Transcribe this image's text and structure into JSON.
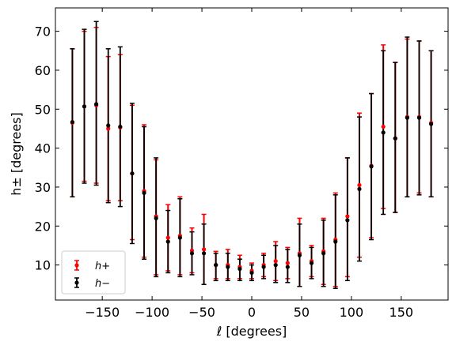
{
  "chart_data": {
    "type": "scatter",
    "xlabel": "ℓ [degrees]",
    "ylabel": "h± [degrees]",
    "xlim": [
      -197,
      197
    ],
    "ylim": [
      1,
      76
    ],
    "xticks": [
      -150,
      -100,
      -50,
      0,
      50,
      100,
      150
    ],
    "yticks": [
      10,
      20,
      30,
      40,
      50,
      60,
      70
    ],
    "xtick_labels": [
      "−150",
      "−100",
      "−50",
      "0",
      "50",
      "100",
      "150"
    ],
    "ytick_labels": [
      "10",
      "20",
      "30",
      "40",
      "50",
      "60",
      "70"
    ],
    "legend_position": "lower-left",
    "series": [
      {
        "name": "h+",
        "color": "#ff0000",
        "points": [
          {
            "x": -180,
            "y": 46.5,
            "lo": 27.5,
            "hi": 65.5
          },
          {
            "x": -168,
            "y": 50.7,
            "lo": 31.5,
            "hi": 70.0
          },
          {
            "x": -156,
            "y": 51.0,
            "lo": 31.0,
            "hi": 71.0
          },
          {
            "x": -144,
            "y": 45.0,
            "lo": 26.5,
            "hi": 63.5
          },
          {
            "x": -132,
            "y": 45.3,
            "lo": 26.5,
            "hi": 64.0
          },
          {
            "x": -120,
            "y": 33.5,
            "lo": 16.5,
            "hi": 51.0
          },
          {
            "x": -108,
            "y": 29.0,
            "lo": 12.0,
            "hi": 46.0
          },
          {
            "x": -96,
            "y": 22.5,
            "lo": 7.5,
            "hi": 37.0
          },
          {
            "x": -84,
            "y": 17.0,
            "lo": 8.5,
            "hi": 25.5
          },
          {
            "x": -72,
            "y": 17.5,
            "lo": 7.5,
            "hi": 27.5
          },
          {
            "x": -60,
            "y": 13.7,
            "lo": 8.0,
            "hi": 19.5
          },
          {
            "x": -48,
            "y": 14.0,
            "lo": 5.0,
            "hi": 23.0
          },
          {
            "x": -36,
            "y": 10.0,
            "lo": 6.5,
            "hi": 13.5
          },
          {
            "x": -24,
            "y": 10.0,
            "lo": 6.5,
            "hi": 14.0
          },
          {
            "x": -12,
            "y": 9.5,
            "lo": 6.5,
            "hi": 12.5
          },
          {
            "x": 0,
            "y": 8.5,
            "lo": 6.5,
            "hi": 10.5
          },
          {
            "x": 12,
            "y": 10.0,
            "lo": 7.0,
            "hi": 13.0
          },
          {
            "x": 24,
            "y": 11.0,
            "lo": 6.0,
            "hi": 16.0
          },
          {
            "x": 36,
            "y": 10.5,
            "lo": 6.5,
            "hi": 14.5
          },
          {
            "x": 48,
            "y": 13.0,
            "lo": 4.5,
            "hi": 22.0
          },
          {
            "x": 60,
            "y": 11.0,
            "lo": 7.0,
            "hi": 15.0
          },
          {
            "x": 72,
            "y": 13.5,
            "lo": 5.0,
            "hi": 22.0
          },
          {
            "x": 84,
            "y": 16.5,
            "lo": 4.5,
            "hi": 28.5
          },
          {
            "x": 96,
            "y": 22.5,
            "lo": 7.0,
            "hi": 37.5
          },
          {
            "x": 108,
            "y": 30.5,
            "lo": 12.0,
            "hi": 49.0
          },
          {
            "x": 120,
            "y": 35.5,
            "lo": 17.0,
            "hi": 54.0
          },
          {
            "x": 132,
            "y": 45.5,
            "lo": 24.5,
            "hi": 66.5
          },
          {
            "x": 144,
            "y": 42.5,
            "lo": 23.5,
            "hi": 62.0
          },
          {
            "x": 156,
            "y": 48.0,
            "lo": 27.5,
            "hi": 68.0
          },
          {
            "x": 168,
            "y": 48.0,
            "lo": 28.5,
            "hi": 67.5
          },
          {
            "x": 180,
            "y": 46.5,
            "lo": 27.5,
            "hi": 65.0
          }
        ]
      },
      {
        "name": "h−",
        "color": "#000000",
        "points": [
          {
            "x": -180,
            "y": 46.7,
            "lo": 27.5,
            "hi": 65.5
          },
          {
            "x": -168,
            "y": 50.7,
            "lo": 31.0,
            "hi": 70.5
          },
          {
            "x": -156,
            "y": 51.3,
            "lo": 30.5,
            "hi": 72.5
          },
          {
            "x": -144,
            "y": 45.8,
            "lo": 26.0,
            "hi": 65.5
          },
          {
            "x": -132,
            "y": 45.5,
            "lo": 25.0,
            "hi": 66.0
          },
          {
            "x": -120,
            "y": 33.5,
            "lo": 15.5,
            "hi": 51.5
          },
          {
            "x": -108,
            "y": 28.5,
            "lo": 11.5,
            "hi": 45.5
          },
          {
            "x": -96,
            "y": 22.0,
            "lo": 7.0,
            "hi": 37.5
          },
          {
            "x": -84,
            "y": 16.0,
            "lo": 8.0,
            "hi": 24.0
          },
          {
            "x": -72,
            "y": 17.0,
            "lo": 7.0,
            "hi": 27.0
          },
          {
            "x": -60,
            "y": 13.0,
            "lo": 7.5,
            "hi": 18.5
          },
          {
            "x": -48,
            "y": 13.0,
            "lo": 5.0,
            "hi": 20.5
          },
          {
            "x": -36,
            "y": 10.0,
            "lo": 6.0,
            "hi": 13.0
          },
          {
            "x": -24,
            "y": 9.5,
            "lo": 6.0,
            "hi": 13.0
          },
          {
            "x": -12,
            "y": 9.0,
            "lo": 6.0,
            "hi": 11.5
          },
          {
            "x": 0,
            "y": 8.0,
            "lo": 6.0,
            "hi": 10.0
          },
          {
            "x": 12,
            "y": 9.5,
            "lo": 6.5,
            "hi": 12.5
          },
          {
            "x": 24,
            "y": 10.0,
            "lo": 5.5,
            "hi": 15.0
          },
          {
            "x": 36,
            "y": 9.5,
            "lo": 5.5,
            "hi": 14.0
          },
          {
            "x": 48,
            "y": 12.5,
            "lo": 4.5,
            "hi": 20.5
          },
          {
            "x": 60,
            "y": 10.5,
            "lo": 6.5,
            "hi": 14.5
          },
          {
            "x": 72,
            "y": 13.0,
            "lo": 4.5,
            "hi": 21.5
          },
          {
            "x": 84,
            "y": 16.0,
            "lo": 4.0,
            "hi": 28.0
          },
          {
            "x": 96,
            "y": 21.5,
            "lo": 6.0,
            "hi": 37.5
          },
          {
            "x": 108,
            "y": 29.5,
            "lo": 11.0,
            "hi": 48.0
          },
          {
            "x": 120,
            "y": 35.3,
            "lo": 16.5,
            "hi": 54.0
          },
          {
            "x": 132,
            "y": 44.0,
            "lo": 23.0,
            "hi": 65.0
          },
          {
            "x": 144,
            "y": 42.5,
            "lo": 23.5,
            "hi": 62.0
          },
          {
            "x": 156,
            "y": 47.8,
            "lo": 27.5,
            "hi": 68.5
          },
          {
            "x": 168,
            "y": 47.8,
            "lo": 28.0,
            "hi": 67.5
          },
          {
            "x": 180,
            "y": 46.2,
            "lo": 27.5,
            "hi": 65.0
          }
        ]
      }
    ]
  }
}
